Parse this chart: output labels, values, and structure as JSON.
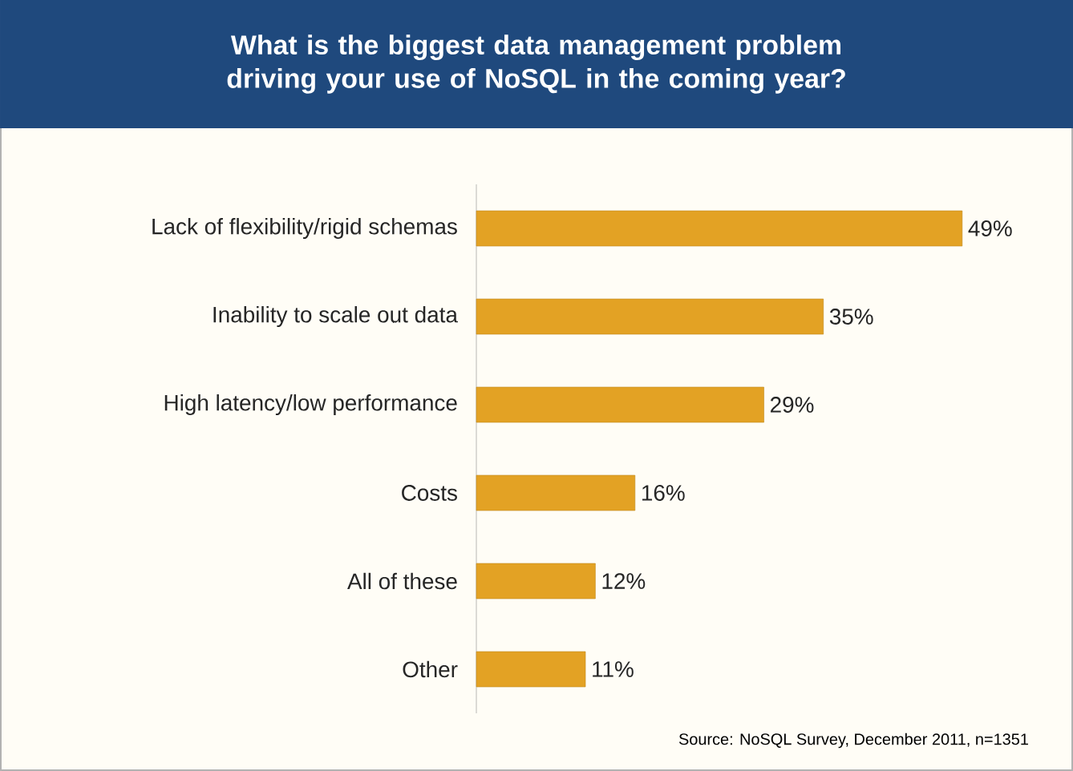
{
  "chart_data": {
    "type": "bar",
    "orientation": "horizontal",
    "title": "What is the biggest data management problem driving your use of NoSQL in the coming year?",
    "categories": [
      "Lack of flexibility/rigid schemas",
      "Inability to scale out data",
      "High latency/low performance",
      "Costs",
      "All of these",
      "Other"
    ],
    "values": [
      49,
      35,
      29,
      16,
      12,
      11
    ],
    "value_labels": [
      "49%",
      "35%",
      "29%",
      "16%",
      "12%",
      "11%"
    ],
    "color": "#e3a224",
    "annotations": [
      "Source: NoSQL Survey, December 2011, n=1351"
    ]
  }
}
